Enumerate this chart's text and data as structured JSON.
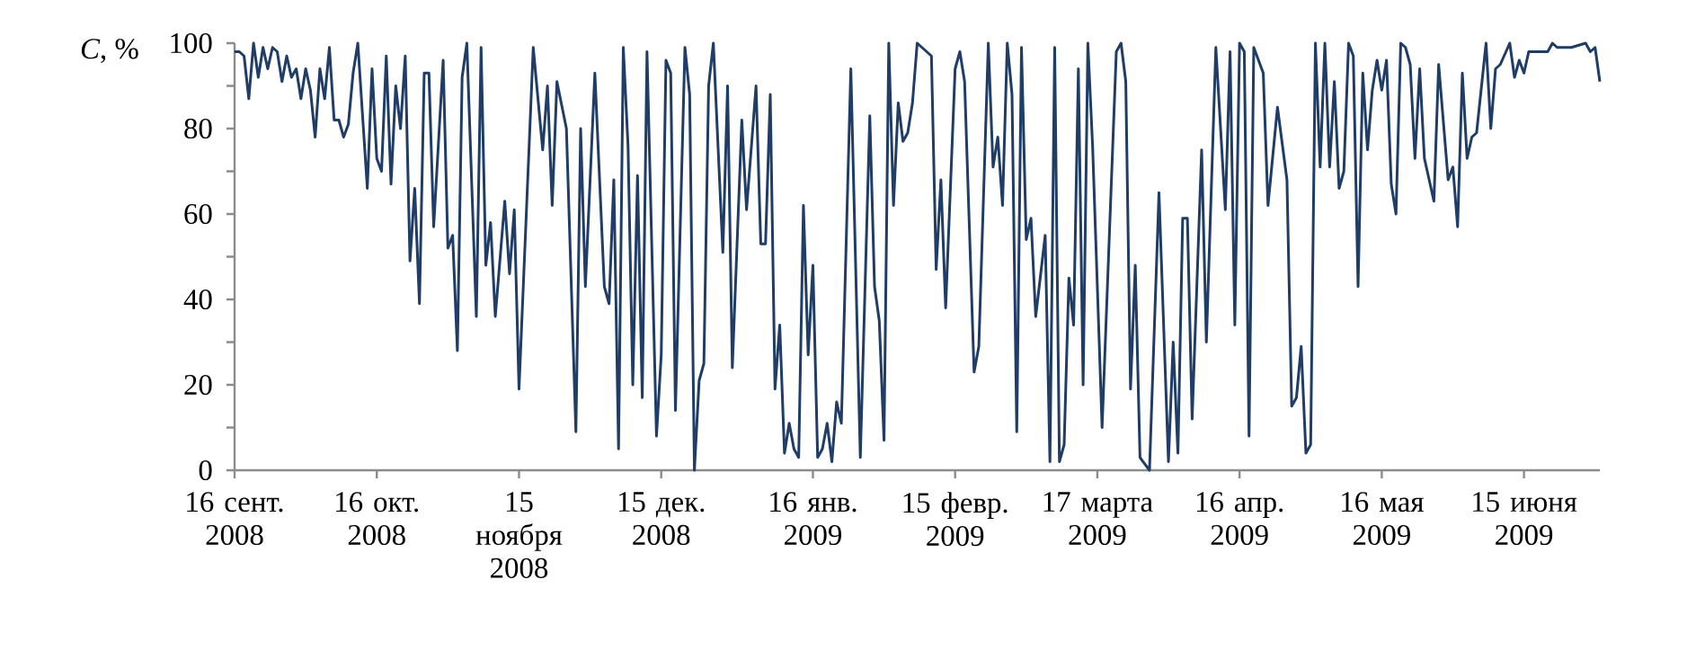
{
  "chart_data": {
    "type": "line",
    "ylabel": "*C*, %",
    "color": "#1f3d66",
    "xlim": [
      "2008-09-16",
      "2009-07-01"
    ],
    "xticks": [
      {
        "value": "2008-09-16",
        "label": "16 сент. 2008"
      },
      {
        "value": "2008-10-16",
        "label": "16 окт. 2008"
      },
      {
        "value": "2008-11-15",
        "label": "15 ноября 2008"
      },
      {
        "value": "2008-12-15",
        "label": "15 дек. 2008"
      },
      {
        "value": "2009-01-16",
        "label": "16 янв. 2009"
      },
      {
        "value": "2009-02-15",
        "label": "15 февр. 2009"
      },
      {
        "value": "2009-03-17",
        "label": "17 марта 2009"
      },
      {
        "value": "2009-04-16",
        "label": "16 апр. 2009"
      },
      {
        "value": "2009-05-16",
        "label": "16 мая 2009"
      },
      {
        "value": "2009-06-15",
        "label": "15 июня 2009"
      }
    ],
    "ylim": [
      0,
      100
    ],
    "yticks": [
      0,
      {
        "value": 10,
        "label": null
      },
      20,
      {
        "value": 30,
        "label": null
      },
      40,
      {
        "value": 50,
        "label": null
      },
      60,
      {
        "value": 70,
        "label": null
      },
      80,
      {
        "value": 90,
        "label": null
      },
      100
    ],
    "x": [
      "2008-09-16",
      "2008-09-17",
      "2008-09-18",
      "2008-09-19",
      "2008-09-20",
      "2008-09-21",
      "2008-09-22",
      "2008-09-23",
      "2008-09-24",
      "2008-09-25",
      "2008-09-26",
      "2008-09-27",
      "2008-09-28",
      "2008-09-29",
      "2008-09-30",
      "2008-10-01",
      "2008-10-02",
      "2008-10-03",
      "2008-10-04",
      "2008-10-05",
      "2008-10-06",
      "2008-10-07",
      "2008-10-08",
      "2008-10-09",
      "2008-10-10",
      "2008-10-11",
      "2008-10-12",
      "2008-10-14",
      "2008-10-15",
      "2008-10-16",
      "2008-10-17",
      "2008-10-18",
      "2008-10-19",
      "2008-10-20",
      "2008-10-21",
      "2008-10-22",
      "2008-10-23",
      "2008-10-24",
      "2008-10-25",
      "2008-10-26",
      "2008-10-27",
      "2008-10-28",
      "2008-10-30",
      "2008-10-31",
      "2008-11-01",
      "2008-11-02",
      "2008-11-03",
      "2008-11-04",
      "2008-11-06",
      "2008-11-07",
      "2008-11-08",
      "2008-11-09",
      "2008-11-10",
      "2008-11-12",
      "2008-11-13",
      "2008-11-14",
      "2008-11-15",
      "2008-11-18",
      "2008-11-20",
      "2008-11-21",
      "2008-11-22",
      "2008-11-23",
      "2008-11-25",
      "2008-11-27",
      "2008-11-28",
      "2008-11-29",
      "2008-12-01",
      "2008-12-03",
      "2008-12-04",
      "2008-12-05",
      "2008-12-06",
      "2008-12-07",
      "2008-12-08",
      "2008-12-09",
      "2008-12-10",
      "2008-12-11",
      "2008-12-12",
      "2008-12-14",
      "2008-12-15",
      "2008-12-16",
      "2008-12-17",
      "2008-12-18",
      "2008-12-20",
      "2008-12-21",
      "2008-12-22",
      "2008-12-23",
      "2008-12-24",
      "2008-12-25",
      "2008-12-26",
      "2008-12-28",
      "2008-12-29",
      "2008-12-30",
      "2009-01-01",
      "2009-01-02",
      "2009-01-04",
      "2009-01-05",
      "2009-01-06",
      "2009-01-07",
      "2009-01-08",
      "2009-01-09",
      "2009-01-10",
      "2009-01-11",
      "2009-01-12",
      "2009-01-13",
      "2009-01-14",
      "2009-01-15",
      "2009-01-16",
      "2009-01-17",
      "2009-01-18",
      "2009-01-19",
      "2009-01-20",
      "2009-01-21",
      "2009-01-22",
      "2009-01-24",
      "2009-01-26",
      "2009-01-28",
      "2009-01-29",
      "2009-01-30",
      "2009-01-31",
      "2009-02-01",
      "2009-02-02",
      "2009-02-03",
      "2009-02-04",
      "2009-02-05",
      "2009-02-06",
      "2009-02-07",
      "2009-02-08",
      "2009-02-10",
      "2009-02-11",
      "2009-02-12",
      "2009-02-13",
      "2009-02-15",
      "2009-02-16",
      "2009-02-17",
      "2009-02-19",
      "2009-02-20",
      "2009-02-22",
      "2009-02-23",
      "2009-02-24",
      "2009-02-25",
      "2009-02-26",
      "2009-02-27",
      "2009-02-28",
      "2009-03-01",
      "2009-03-02",
      "2009-03-03",
      "2009-03-04",
      "2009-03-06",
      "2009-03-07",
      "2009-03-08",
      "2009-03-09",
      "2009-03-10",
      "2009-03-11",
      "2009-03-12",
      "2009-03-13",
      "2009-03-14",
      "2009-03-15",
      "2009-03-16",
      "2009-03-18",
      "2009-03-21",
      "2009-03-22",
      "2009-03-23",
      "2009-03-24",
      "2009-03-25",
      "2009-03-26",
      "2009-03-28",
      "2009-03-30",
      "2009-04-01",
      "2009-04-02",
      "2009-04-03",
      "2009-04-04",
      "2009-04-05",
      "2009-04-06",
      "2009-04-08",
      "2009-04-09",
      "2009-04-11",
      "2009-04-13",
      "2009-04-14",
      "2009-04-15",
      "2009-04-16",
      "2009-04-17",
      "2009-04-18",
      "2009-04-19",
      "2009-04-21",
      "2009-04-22",
      "2009-04-24",
      "2009-04-26",
      "2009-04-27",
      "2009-04-28",
      "2009-04-29",
      "2009-04-30",
      "2009-05-01",
      "2009-05-02",
      "2009-05-03",
      "2009-05-04",
      "2009-05-05",
      "2009-05-06",
      "2009-05-07",
      "2009-05-08",
      "2009-05-09",
      "2009-05-10",
      "2009-05-11",
      "2009-05-12",
      "2009-05-13",
      "2009-05-14",
      "2009-05-15",
      "2009-05-16",
      "2009-05-17",
      "2009-05-18",
      "2009-05-19",
      "2009-05-20",
      "2009-05-21",
      "2009-05-22",
      "2009-05-23",
      "2009-05-24",
      "2009-05-25",
      "2009-05-27",
      "2009-05-28",
      "2009-05-30",
      "2009-05-31",
      "2009-06-01",
      "2009-06-02",
      "2009-06-03",
      "2009-06-04",
      "2009-06-05",
      "2009-06-07",
      "2009-06-08",
      "2009-06-09",
      "2009-06-10",
      "2009-06-12",
      "2009-06-13",
      "2009-06-14",
      "2009-06-15",
      "2009-06-16",
      "2009-06-17",
      "2009-06-20",
      "2009-06-21",
      "2009-06-22",
      "2009-06-23",
      "2009-06-24",
      "2009-06-25",
      "2009-06-28",
      "2009-06-29",
      "2009-06-30",
      "2009-07-01"
    ],
    "values": [
      98,
      98,
      97,
      87,
      100,
      92,
      99,
      94,
      99,
      98,
      91,
      97,
      92,
      94,
      87,
      94,
      89,
      78,
      94,
      87,
      99,
      82,
      82,
      78,
      81,
      93,
      100,
      66,
      94,
      73,
      70,
      97,
      67,
      90,
      80,
      97,
      49,
      66,
      39,
      93,
      93,
      57,
      96,
      52,
      55,
      28,
      92,
      100,
      36,
      99,
      48,
      58,
      36,
      63,
      46,
      61,
      19,
      99,
      75,
      90,
      62,
      91,
      80,
      9,
      80,
      43,
      93,
      43,
      39,
      68,
      5,
      99,
      76,
      20,
      69,
      17,
      98,
      8,
      27,
      96,
      93,
      14,
      99,
      88,
      0,
      21,
      25,
      90,
      100,
      51,
      90,
      24,
      82,
      61,
      90,
      53,
      53,
      88,
      19,
      34,
      4,
      11,
      5,
      3,
      62,
      27,
      48,
      3,
      5,
      11,
      2,
      16,
      11,
      94,
      3,
      83,
      43,
      35,
      7,
      100,
      62,
      86,
      77,
      79,
      86,
      100,
      99,
      97,
      47,
      68,
      38,
      94,
      98,
      91,
      23,
      29,
      100,
      71,
      78,
      62,
      100,
      88,
      9,
      99,
      54,
      59,
      36,
      55,
      2,
      99,
      2,
      6,
      45,
      34,
      94,
      20,
      100,
      76,
      10,
      98,
      100,
      91,
      19,
      48,
      3,
      0,
      65,
      2,
      30,
      4,
      59,
      59,
      12,
      75,
      30,
      99,
      61,
      98,
      34,
      100,
      98,
      8,
      99,
      93,
      62,
      85,
      68,
      15,
      17,
      29,
      4,
      6,
      100,
      71,
      100,
      71,
      91,
      66,
      70,
      100,
      97,
      43,
      93,
      75,
      89,
      96,
      89,
      96,
      67,
      60,
      100,
      99,
      95,
      73,
      94,
      73,
      63,
      95,
      68,
      71,
      57,
      93,
      73,
      78,
      79,
      100,
      80,
      94,
      95,
      100,
      92,
      96,
      93,
      98,
      98,
      98,
      100,
      99,
      99,
      99,
      99,
      100,
      98,
      99,
      91
    ]
  }
}
